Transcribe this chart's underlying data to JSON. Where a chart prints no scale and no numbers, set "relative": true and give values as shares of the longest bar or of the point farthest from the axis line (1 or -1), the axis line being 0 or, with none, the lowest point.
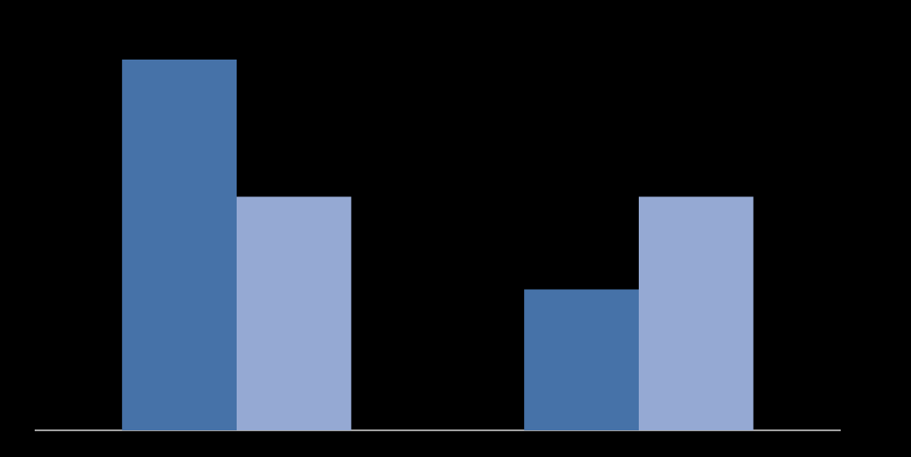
{
  "chart_data": {
    "type": "bar",
    "relative": true,
    "categories": [
      null,
      null
    ],
    "series": [
      {
        "color": "#4672a8",
        "values": [
          1,
          0.38
        ]
      },
      {
        "color": "#95a9d3",
        "values": [
          0.63,
          0.63
        ]
      }
    ],
    "legend": false
  }
}
